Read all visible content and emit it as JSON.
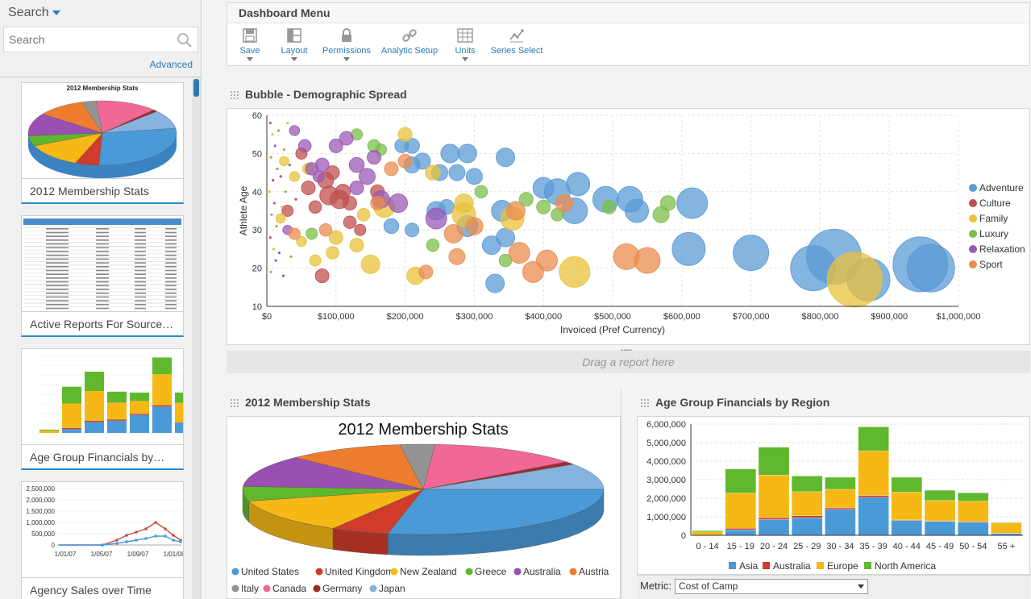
{
  "left_panel": {
    "header": "Search",
    "search_placeholder": "Search",
    "advanced_link": "Advanced",
    "thumbnails": [
      {
        "label": "2012 Membership Stats",
        "mini_title": "2012 Membership Stats"
      },
      {
        "label": "Active Reports For Source…"
      },
      {
        "label": "Age Group Financials by…"
      },
      {
        "label": "Agency Sales over Time",
        "y_ticks": [
          "2,500,000",
          "2,000,000",
          "1,500,000",
          "1,000,000",
          "500,000",
          "0"
        ],
        "x_ticks": [
          "1/01/07",
          "1/05/07",
          "1/09/07",
          "1/01/08"
        ]
      }
    ]
  },
  "dashboard_menu": {
    "title": "Dashboard Menu",
    "tools": [
      {
        "label": "Save",
        "icon": "save-icon"
      },
      {
        "label": "Layout",
        "icon": "layout-icon"
      },
      {
        "label": "Permissions",
        "icon": "lock-icon"
      },
      {
        "label": "Analytic Setup",
        "icon": "link-icon"
      },
      {
        "label": "Units",
        "icon": "grid-icon"
      },
      {
        "label": "Series Select",
        "icon": "series-icon"
      }
    ]
  },
  "drop_zone": {
    "text": "Drag a report here"
  },
  "metric": {
    "label": "Metric:",
    "value": "Cost of Camp"
  },
  "sections": {
    "bubble_title": "Bubble - Demographic Spread",
    "pie_title": "2012 Membership Stats",
    "bar_title": "Age Group Financials by Region"
  },
  "colors": {
    "Adventure": "#5b9bd5",
    "Culture": "#c0504d",
    "Family": "#e8c23a",
    "Luxury": "#7cbf4a",
    "Relaxation": "#9b59b6",
    "Sport": "#eb8c4f",
    "Asia": "#4a9ad8",
    "Australia": "#d03b2c",
    "Europe": "#f5b815",
    "North America": "#60b82d"
  },
  "chart_data": [
    {
      "type": "scatter",
      "title": "Bubble - Demographic Spread",
      "xlabel": "Invoiced (Pref Currency)",
      "ylabel": "Athlete Age",
      "xlim": [
        0,
        1000000
      ],
      "ylim": [
        10,
        60
      ],
      "x_ticks": [
        "$0",
        "$100,000",
        "$200,000",
        "$300,000",
        "$400,000",
        "$500,000",
        "$600,000",
        "$700,000",
        "$800,000",
        "$900,000",
        "$1,000,000"
      ],
      "y_ticks": [
        "10",
        "20",
        "30",
        "40",
        "50",
        "60"
      ],
      "legend": [
        "Adventure",
        "Culture",
        "Family",
        "Luxury",
        "Relaxation",
        "Sport"
      ],
      "series": [
        {
          "name": "Adventure",
          "points": [
            [
              615000,
              37,
              1
            ],
            [
              820000,
              23,
              2
            ],
            [
              945000,
              21,
              2
            ],
            [
              960000,
              20,
              1.7
            ],
            [
              790000,
              20,
              1.6
            ],
            [
              870000,
              17,
              1.5
            ],
            [
              700000,
              24,
              1.2
            ],
            [
              610000,
              25,
              1.1
            ],
            [
              420000,
              40,
              0.8
            ],
            [
              445000,
              35,
              0.8
            ],
            [
              490000,
              38,
              0.8
            ],
            [
              525000,
              38,
              0.8
            ],
            [
              535000,
              35,
              0.7
            ],
            [
              450000,
              42,
              0.7
            ],
            [
              400000,
              41,
              0.6
            ],
            [
              340000,
              35,
              0.6
            ],
            [
              290000,
              31,
              0.6
            ],
            [
              245000,
              35,
              0.5
            ],
            [
              345000,
              28,
              0.5
            ],
            [
              325000,
              26,
              0.5
            ],
            [
              330000,
              16,
              0.5
            ],
            [
              345000,
              49,
              0.5
            ],
            [
              290000,
              50,
              0.5
            ],
            [
              265000,
              50,
              0.5
            ],
            [
              225000,
              48,
              0.4
            ],
            [
              250000,
              45,
              0.4
            ],
            [
              210000,
              47,
              0.4
            ],
            [
              300000,
              44,
              0.4
            ],
            [
              210000,
              52,
              0.35
            ],
            [
              180000,
              31,
              0.35
            ],
            [
              210000,
              30,
              0.3
            ],
            [
              275000,
              45,
              0.4
            ],
            [
              260000,
              36,
              0.35
            ],
            [
              195000,
              52,
              0.3
            ]
          ]
        },
        {
          "name": "Culture",
          "points": [
            [
              90000,
              39,
              0.5
            ],
            [
              105000,
              38,
              0.5
            ],
            [
              85000,
              43,
              0.4
            ],
            [
              110000,
              40,
              0.35
            ],
            [
              95000,
              45,
              0.3
            ],
            [
              60000,
              41,
              0.3
            ],
            [
              80000,
              18,
              0.3
            ],
            [
              160000,
              40,
              0.3
            ],
            [
              120000,
              37,
              0.3
            ],
            [
              50000,
              50,
              0.2
            ],
            [
              30000,
              35,
              0.2
            ],
            [
              120000,
              32,
              0.25
            ],
            [
              135000,
              30,
              0.2
            ],
            [
              70000,
              36,
              0.25
            ]
          ]
        },
        {
          "name": "Family",
          "points": [
            [
              850000,
              17,
              2
            ],
            [
              445000,
              19,
              1
            ],
            [
              355000,
              33,
              0.7
            ],
            [
              285000,
              34,
              0.7
            ],
            [
              170000,
              36,
              0.6
            ],
            [
              150000,
              21,
              0.5
            ],
            [
              215000,
              18,
              0.45
            ],
            [
              285000,
              37,
              0.5
            ],
            [
              240000,
              45,
              0.35
            ],
            [
              200000,
              55,
              0.3
            ],
            [
              100000,
              28,
              0.3
            ],
            [
              130000,
              26,
              0.3
            ],
            [
              140000,
              34,
              0.25
            ],
            [
              95000,
              24,
              0.25
            ],
            [
              70000,
              22,
              0.2
            ],
            [
              60000,
              46,
              0.2
            ],
            [
              40000,
              44,
              0.15
            ],
            [
              25000,
              48,
              0.12
            ],
            [
              20000,
              33,
              0.12
            ],
            [
              50000,
              27,
              0.15
            ]
          ]
        },
        {
          "name": "Luxury",
          "points": [
            [
              570000,
              34,
              0.4
            ],
            [
              580000,
              37,
              0.35
            ],
            [
              495000,
              36,
              0.3
            ],
            [
              400000,
              36,
              0.3
            ],
            [
              375000,
              38,
              0.3
            ],
            [
              420000,
              34,
              0.25
            ],
            [
              345000,
              22,
              0.25
            ],
            [
              310000,
              40,
              0.25
            ],
            [
              155000,
              52,
              0.25
            ],
            [
              130000,
              55,
              0.2
            ],
            [
              240000,
              26,
              0.25
            ],
            [
              165000,
              51,
              0.2
            ],
            [
              65000,
              29,
              0.2
            ]
          ]
        },
        {
          "name": "Relaxation",
          "points": [
            [
              245000,
              33,
              0.6
            ],
            [
              190000,
              37,
              0.5
            ],
            [
              165000,
              38,
              0.45
            ],
            [
              145000,
              44,
              0.4
            ],
            [
              130000,
              47,
              0.35
            ],
            [
              100000,
              52,
              0.3
            ],
            [
              115000,
              54,
              0.3
            ],
            [
              80000,
              47,
              0.3
            ],
            [
              55000,
              52,
              0.25
            ],
            [
              65000,
              46,
              0.25
            ],
            [
              130000,
              41,
              0.3
            ],
            [
              155000,
              49,
              0.3
            ],
            [
              75000,
              44,
              0.2
            ],
            [
              40000,
              56,
              0.15
            ],
            [
              30000,
              30,
              0.12
            ]
          ]
        },
        {
          "name": "Sport",
          "points": [
            [
              520000,
              23,
              0.8
            ],
            [
              550000,
              22,
              0.8
            ],
            [
              385000,
              19,
              0.6
            ],
            [
              405000,
              22,
              0.6
            ],
            [
              365000,
              24,
              0.6
            ],
            [
              270000,
              29,
              0.5
            ],
            [
              300000,
              31,
              0.45
            ],
            [
              275000,
              23,
              0.4
            ],
            [
              430000,
              37,
              0.45
            ],
            [
              360000,
              35,
              0.5
            ],
            [
              160000,
              37,
              0.3
            ],
            [
              200000,
              48,
              0.3
            ],
            [
              180000,
              46,
              0.3
            ],
            [
              230000,
              19,
              0.3
            ],
            [
              85000,
              30,
              0.25
            ],
            [
              40000,
              29,
              0.2
            ]
          ]
        }
      ]
    },
    {
      "type": "pie",
      "title": "2012 Membership Stats",
      "labels": [
        "United States",
        "United Kingdom",
        "New Zealand",
        "Greece",
        "Australia",
        "Austria",
        "Italy",
        "Canada",
        "Germany",
        "Japan"
      ],
      "values": [
        27,
        5,
        12,
        5,
        11,
        10,
        3,
        13,
        1,
        9
      ]
    },
    {
      "type": "bar",
      "stacked": true,
      "title": "Age Group Financials by Region",
      "categories": [
        "0 - 14",
        "15 - 19",
        "20 - 24",
        "25 - 29",
        "30 - 34",
        "35 - 39",
        "40 - 44",
        "45 - 49",
        "50 - 54",
        "55 +"
      ],
      "ylim": [
        0,
        6000000
      ],
      "y_ticks": [
        "0",
        "1,000,000",
        "2,000,000",
        "3,000,000",
        "4,000,000",
        "5,000,000",
        "6,000,000"
      ],
      "series": [
        {
          "name": "Asia",
          "values": [
            0,
            300000,
            850000,
            950000,
            1400000,
            2050000,
            800000,
            750000,
            700000,
            100000
          ]
        },
        {
          "name": "Australia",
          "values": [
            0,
            80000,
            100000,
            100000,
            80000,
            100000,
            30000,
            30000,
            40000,
            20000
          ]
        },
        {
          "name": "Europe",
          "values": [
            180000,
            1900000,
            2300000,
            1300000,
            1000000,
            2400000,
            1500000,
            1100000,
            1100000,
            550000
          ]
        },
        {
          "name": "North America",
          "values": [
            70000,
            1300000,
            1500000,
            850000,
            650000,
            1300000,
            800000,
            550000,
            450000,
            30000
          ]
        }
      ]
    }
  ]
}
